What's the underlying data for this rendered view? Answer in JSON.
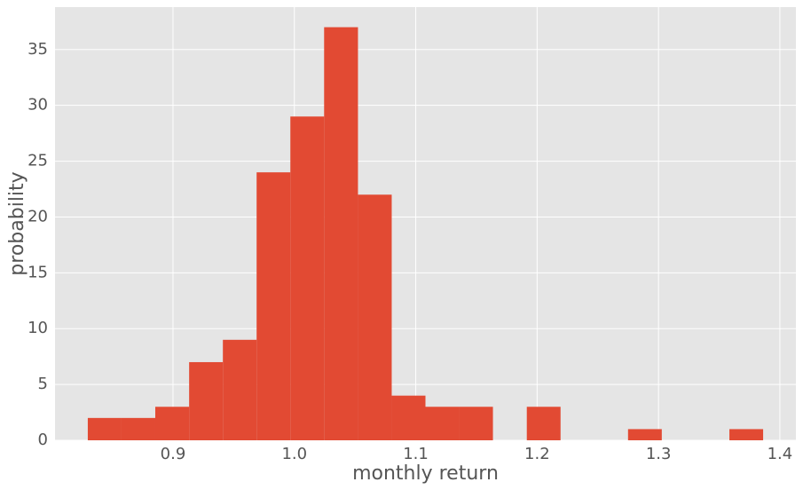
{
  "chart_data": {
    "type": "histogram",
    "xlabel": "monthly return",
    "ylabel": "probability",
    "bins": [
      0.8298,
      0.8576,
      0.8854,
      0.9133,
      0.9411,
      0.9689,
      0.9967,
      1.0245,
      1.0524,
      1.0802,
      1.108,
      1.1358,
      1.1636,
      1.1915,
      1.2193,
      1.2471,
      1.2749,
      1.3027,
      1.3305,
      1.3584,
      1.3862
    ],
    "counts": [
      2,
      2,
      3,
      7,
      9,
      24,
      29,
      37,
      22,
      4,
      3,
      3,
      0,
      3,
      0,
      0,
      1,
      0,
      0,
      1
    ],
    "color": "#e24a33",
    "xlim": [
      0.8028,
      1.4132
    ],
    "xticks": [
      0.9,
      1.0,
      1.1,
      1.2,
      1.3,
      1.4
    ],
    "ylim": [
      0,
      38.8
    ],
    "yticks": [
      0,
      5,
      10,
      15,
      20,
      25,
      30,
      35
    ],
    "grid": true
  }
}
